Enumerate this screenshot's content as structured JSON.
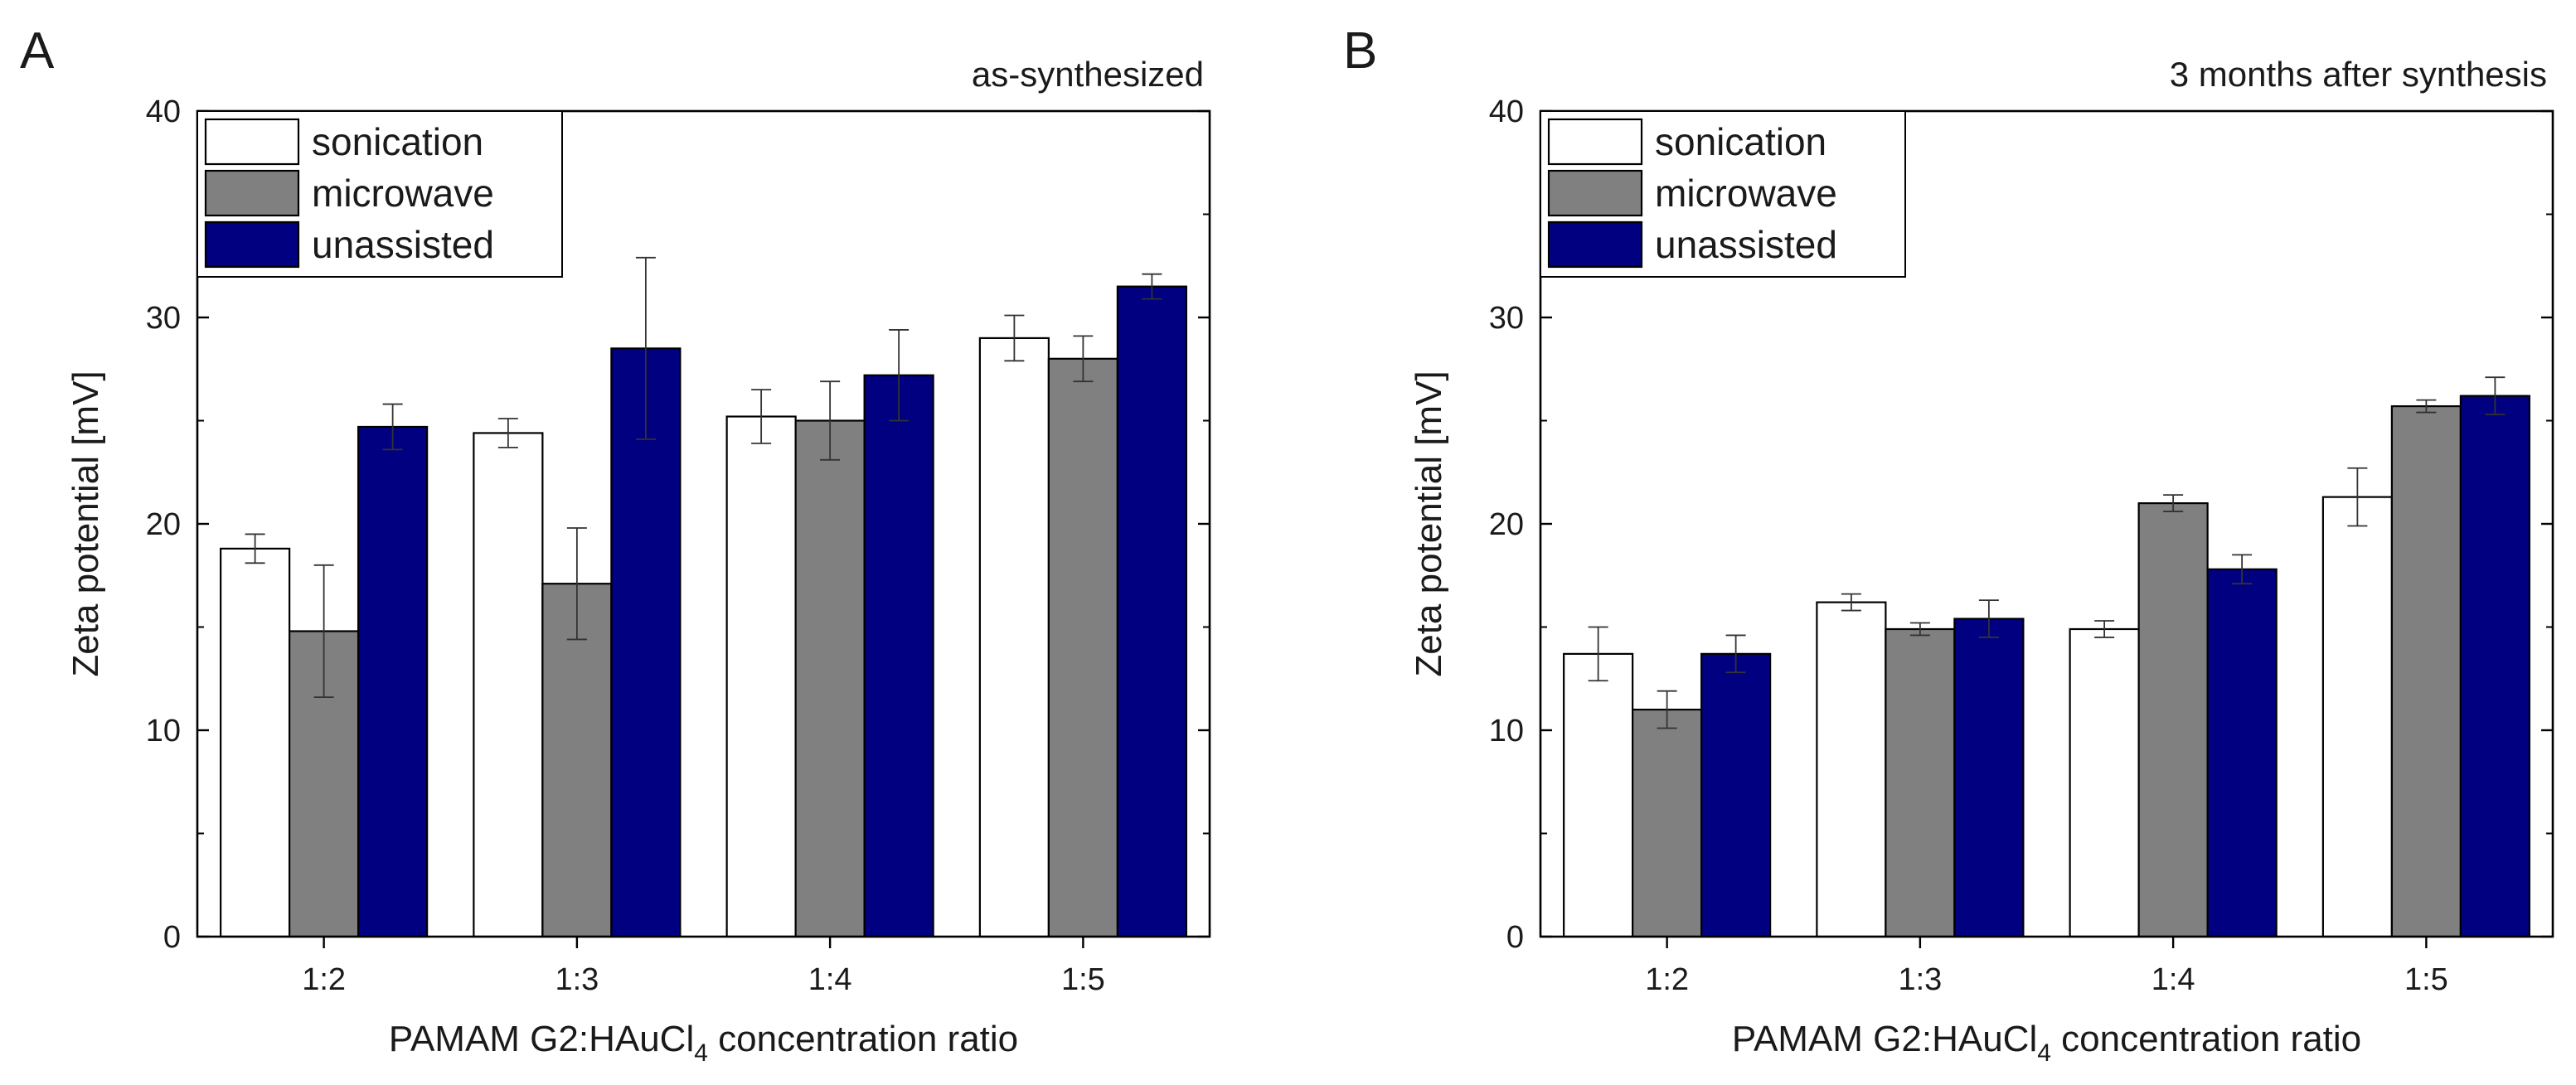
{
  "colors": {
    "sonication": "#ffffff",
    "microwave": "#808080",
    "unassisted": "#000080",
    "axis": "#000000"
  },
  "chart_data": [
    {
      "type": "bar",
      "panel_label": "A",
      "title": "as-synthesized",
      "xlabel": "PAMAM G2:HAuCl",
      "xlabel_sub": "4",
      "xlabel_suffix": " concentration ratio",
      "ylabel": "Zeta potential [mV]",
      "ylim": [
        0,
        40
      ],
      "yticks": [
        "0",
        "10",
        "20",
        "30",
        "40"
      ],
      "categories": [
        "1:2",
        "1:3",
        "1:4",
        "1:5"
      ],
      "legend_position": "top-left",
      "series": [
        {
          "name": "sonication",
          "values": [
            18.8,
            24.4,
            25.2,
            29.0
          ],
          "errors": [
            0.7,
            0.7,
            1.3,
            1.1
          ]
        },
        {
          "name": "microwave",
          "values": [
            14.8,
            17.1,
            25.0,
            28.0
          ],
          "errors": [
            3.2,
            2.7,
            1.9,
            1.1
          ]
        },
        {
          "name": "unassisted",
          "values": [
            24.7,
            28.5,
            27.2,
            31.5
          ],
          "errors": [
            1.1,
            4.4,
            2.2,
            0.6
          ]
        }
      ]
    },
    {
      "type": "bar",
      "panel_label": "B",
      "title": "3 months after synthesis",
      "xlabel": "PAMAM G2:HAuCl",
      "xlabel_sub": "4",
      "xlabel_suffix": " concentration ratio",
      "ylabel": "Zeta potential [mV]",
      "ylim": [
        0,
        40
      ],
      "yticks": [
        "0",
        "10",
        "20",
        "30",
        "40"
      ],
      "categories": [
        "1:2",
        "1:3",
        "1:4",
        "1:5"
      ],
      "legend_position": "top-left",
      "series": [
        {
          "name": "sonication",
          "values": [
            13.7,
            16.2,
            14.9,
            21.3
          ],
          "errors": [
            1.3,
            0.4,
            0.4,
            1.4
          ]
        },
        {
          "name": "microwave",
          "values": [
            11.0,
            14.9,
            21.0,
            25.7
          ],
          "errors": [
            0.9,
            0.3,
            0.4,
            0.3
          ]
        },
        {
          "name": "unassisted",
          "values": [
            13.7,
            15.4,
            17.8,
            26.2
          ],
          "errors": [
            0.9,
            0.9,
            0.7,
            0.9
          ]
        }
      ]
    }
  ]
}
